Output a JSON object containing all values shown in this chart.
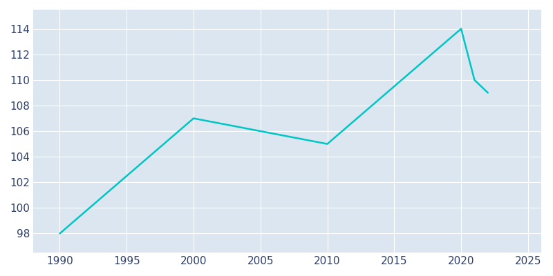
{
  "years": [
    1990,
    2000,
    2005,
    2010,
    2020,
    2021,
    2022
  ],
  "population": [
    98,
    107,
    106,
    105,
    114,
    110,
    109
  ],
  "line_color": "#00C5C5",
  "fig_bg_color": "#FFFFFF",
  "plot_bg_color": "#DCE6F0",
  "xlim": [
    1988,
    2026
  ],
  "ylim": [
    96.5,
    115.5
  ],
  "xticks": [
    1990,
    1995,
    2000,
    2005,
    2010,
    2015,
    2020,
    2025
  ],
  "yticks": [
    98,
    100,
    102,
    104,
    106,
    108,
    110,
    112,
    114
  ],
  "tick_color": "#2D3F6B",
  "grid_color": "#FFFFFF",
  "linewidth": 1.8,
  "tick_labelsize": 11
}
